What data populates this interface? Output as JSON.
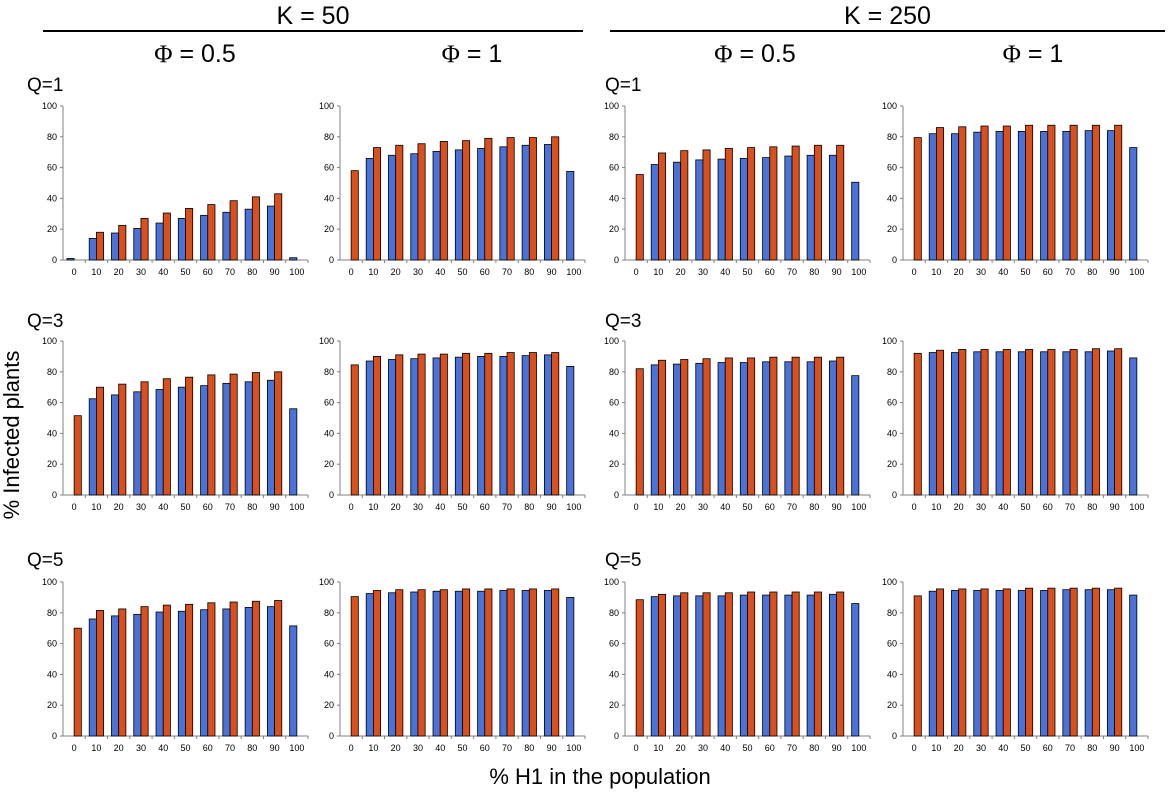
{
  "figure": {
    "ylabel": "% Infected plants",
    "xlabel": "% H1 in the population",
    "k_titles": [
      "K = 50",
      "K = 250"
    ],
    "phi_titles": [
      {
        "sym": "Φ",
        "val": " = 0.5"
      },
      {
        "sym": "Φ",
        "val": " = 1"
      },
      {
        "sym": "Φ",
        "val": " = 0.5"
      },
      {
        "sym": "Φ",
        "val": " = 1"
      }
    ],
    "q_labels": [
      "Q=1",
      "Q=3",
      "Q=5"
    ]
  },
  "colors": {
    "blue": "#4a73d9",
    "orange": "#d9501c",
    "axis": "#808080"
  },
  "chart_data": [
    {
      "type": "bar",
      "K": 50,
      "phi": 0.5,
      "Q": 1,
      "categories": [
        "0",
        "10",
        "20",
        "30",
        "40",
        "50",
        "60",
        "70",
        "80",
        "90",
        "100"
      ],
      "ylim": [
        0,
        100
      ],
      "yticks": [
        0,
        20,
        40,
        60,
        80,
        100
      ],
      "series": [
        {
          "values": [
            1,
            14,
            17.5,
            20.5,
            24,
            27,
            29,
            31,
            33,
            35,
            1.5
          ]
        },
        {
          "values": [
            null,
            18,
            22.5,
            27,
            30.5,
            33.5,
            36,
            38.5,
            41,
            43,
            null
          ]
        }
      ]
    },
    {
      "type": "bar",
      "K": 50,
      "phi": 1,
      "Q": 1,
      "categories": [
        "0",
        "10",
        "20",
        "30",
        "40",
        "50",
        "60",
        "70",
        "80",
        "90",
        "100"
      ],
      "ylim": [
        0,
        100
      ],
      "yticks": [
        0,
        20,
        40,
        60,
        80,
        100
      ],
      "series": [
        {
          "values": [
            null,
            66,
            68,
            69,
            70.5,
            71.5,
            72.5,
            73.5,
            74.5,
            75,
            57.5
          ]
        },
        {
          "values": [
            58,
            73,
            74.5,
            75.5,
            77,
            77.5,
            79,
            79.5,
            79.5,
            80,
            null
          ]
        }
      ]
    },
    {
      "type": "bar",
      "K": 250,
      "phi": 0.5,
      "Q": 1,
      "categories": [
        "0",
        "10",
        "20",
        "30",
        "40",
        "50",
        "60",
        "70",
        "80",
        "90",
        "100"
      ],
      "ylim": [
        0,
        100
      ],
      "yticks": [
        0,
        20,
        40,
        60,
        80,
        100
      ],
      "series": [
        {
          "values": [
            null,
            62,
            63.5,
            65,
            65.5,
            66,
            66.5,
            67.5,
            68,
            68,
            50.5
          ]
        },
        {
          "values": [
            55.5,
            69.5,
            71,
            71.5,
            72.5,
            73,
            73.5,
            74,
            74.5,
            74.5,
            null
          ]
        }
      ]
    },
    {
      "type": "bar",
      "K": 250,
      "phi": 1,
      "Q": 1,
      "categories": [
        "0",
        "10",
        "20",
        "30",
        "40",
        "50",
        "60",
        "70",
        "80",
        "90",
        "100"
      ],
      "ylim": [
        0,
        100
      ],
      "yticks": [
        0,
        20,
        40,
        60,
        80,
        100
      ],
      "series": [
        {
          "values": [
            null,
            82,
            82,
            83,
            83.5,
            83.5,
            83.5,
            83.5,
            84,
            84,
            73
          ]
        },
        {
          "values": [
            79.5,
            86,
            86.5,
            87,
            87,
            87.5,
            87.5,
            87.5,
            87.5,
            87.5,
            null
          ]
        }
      ]
    },
    {
      "type": "bar",
      "K": 50,
      "phi": 0.5,
      "Q": 3,
      "categories": [
        "0",
        "10",
        "20",
        "30",
        "40",
        "50",
        "60",
        "70",
        "80",
        "90",
        "100"
      ],
      "ylim": [
        0,
        100
      ],
      "yticks": [
        0,
        20,
        40,
        60,
        80,
        100
      ],
      "series": [
        {
          "values": [
            null,
            62.5,
            65,
            67,
            68.5,
            70,
            71,
            72.5,
            73.5,
            74.5,
            56
          ]
        },
        {
          "values": [
            51.5,
            70,
            72,
            73.5,
            75.5,
            76.5,
            78,
            78.5,
            79.5,
            80,
            null
          ]
        }
      ]
    },
    {
      "type": "bar",
      "K": 50,
      "phi": 1,
      "Q": 3,
      "categories": [
        "0",
        "10",
        "20",
        "30",
        "40",
        "50",
        "60",
        "70",
        "80",
        "90",
        "100"
      ],
      "ylim": [
        0,
        100
      ],
      "yticks": [
        0,
        20,
        40,
        60,
        80,
        100
      ],
      "series": [
        {
          "values": [
            null,
            87,
            88,
            88.5,
            89,
            89.5,
            90,
            90,
            90.5,
            91,
            83.5
          ]
        },
        {
          "values": [
            84.5,
            90,
            91,
            91.5,
            91.5,
            92,
            92,
            92.5,
            92.5,
            92.5,
            null
          ]
        }
      ]
    },
    {
      "type": "bar",
      "K": 250,
      "phi": 0.5,
      "Q": 3,
      "categories": [
        "0",
        "10",
        "20",
        "30",
        "40",
        "50",
        "60",
        "70",
        "80",
        "90",
        "100"
      ],
      "ylim": [
        0,
        100
      ],
      "yticks": [
        0,
        20,
        40,
        60,
        80,
        100
      ],
      "series": [
        {
          "values": [
            null,
            84.5,
            85,
            85.5,
            86,
            86,
            86.5,
            86.5,
            86.5,
            87,
            77.5
          ]
        },
        {
          "values": [
            82,
            87.5,
            88,
            88.5,
            89,
            89,
            89.5,
            89.5,
            89.5,
            89.5,
            null
          ]
        }
      ]
    },
    {
      "type": "bar",
      "K": 250,
      "phi": 1,
      "Q": 3,
      "categories": [
        "0",
        "10",
        "20",
        "30",
        "40",
        "50",
        "60",
        "70",
        "80",
        "90",
        "100"
      ],
      "ylim": [
        0,
        100
      ],
      "yticks": [
        0,
        20,
        40,
        60,
        80,
        100
      ],
      "series": [
        {
          "values": [
            null,
            92.5,
            92.5,
            93,
            93,
            93,
            93,
            93,
            93,
            93.5,
            89
          ]
        },
        {
          "values": [
            92,
            94,
            94.5,
            94.5,
            94.5,
            94.5,
            94.5,
            94.5,
            95,
            95,
            null
          ]
        }
      ]
    },
    {
      "type": "bar",
      "K": 50,
      "phi": 0.5,
      "Q": 5,
      "categories": [
        "0",
        "10",
        "20",
        "30",
        "40",
        "50",
        "60",
        "70",
        "80",
        "90",
        "100"
      ],
      "ylim": [
        0,
        100
      ],
      "yticks": [
        0,
        20,
        40,
        60,
        80,
        100
      ],
      "series": [
        {
          "values": [
            null,
            76,
            78,
            79,
            80.5,
            81,
            82,
            82.5,
            83.5,
            84,
            71.5
          ]
        },
        {
          "values": [
            70,
            81.5,
            82.5,
            84,
            85,
            85.5,
            86.5,
            87,
            87.5,
            88,
            null
          ]
        }
      ]
    },
    {
      "type": "bar",
      "K": 50,
      "phi": 1,
      "Q": 5,
      "categories": [
        "0",
        "10",
        "20",
        "30",
        "40",
        "50",
        "60",
        "70",
        "80",
        "90",
        "100"
      ],
      "ylim": [
        0,
        100
      ],
      "yticks": [
        0,
        20,
        40,
        60,
        80,
        100
      ],
      "series": [
        {
          "values": [
            null,
            92.5,
            93,
            93.5,
            94,
            94,
            94,
            94.5,
            94.5,
            94.5,
            90
          ]
        },
        {
          "values": [
            90.5,
            94.5,
            95,
            95,
            95,
            95.5,
            95.5,
            95.5,
            95.5,
            95.5,
            null
          ]
        }
      ]
    },
    {
      "type": "bar",
      "K": 250,
      "phi": 0.5,
      "Q": 5,
      "categories": [
        "0",
        "10",
        "20",
        "30",
        "40",
        "50",
        "60",
        "70",
        "80",
        "90",
        "100"
      ],
      "ylim": [
        0,
        100
      ],
      "yticks": [
        0,
        20,
        40,
        60,
        80,
        100
      ],
      "series": [
        {
          "values": [
            null,
            90.5,
            91,
            91,
            91,
            91.5,
            91.5,
            91.5,
            91.5,
            92,
            86
          ]
        },
        {
          "values": [
            88.5,
            92,
            93,
            93,
            93,
            93.5,
            93.5,
            93.5,
            93.5,
            93.5,
            null
          ]
        }
      ]
    },
    {
      "type": "bar",
      "K": 250,
      "phi": 1,
      "Q": 5,
      "categories": [
        "0",
        "10",
        "20",
        "30",
        "40",
        "50",
        "60",
        "70",
        "80",
        "90",
        "100"
      ],
      "ylim": [
        0,
        100
      ],
      "yticks": [
        0,
        20,
        40,
        60,
        80,
        100
      ],
      "series": [
        {
          "values": [
            null,
            94,
            94.5,
            94.5,
            94.5,
            94.5,
            94.5,
            95,
            95,
            95,
            91.5
          ]
        },
        {
          "values": [
            91,
            95.5,
            95.5,
            95.5,
            95.5,
            96,
            96,
            96,
            96,
            96,
            null
          ]
        }
      ]
    }
  ]
}
